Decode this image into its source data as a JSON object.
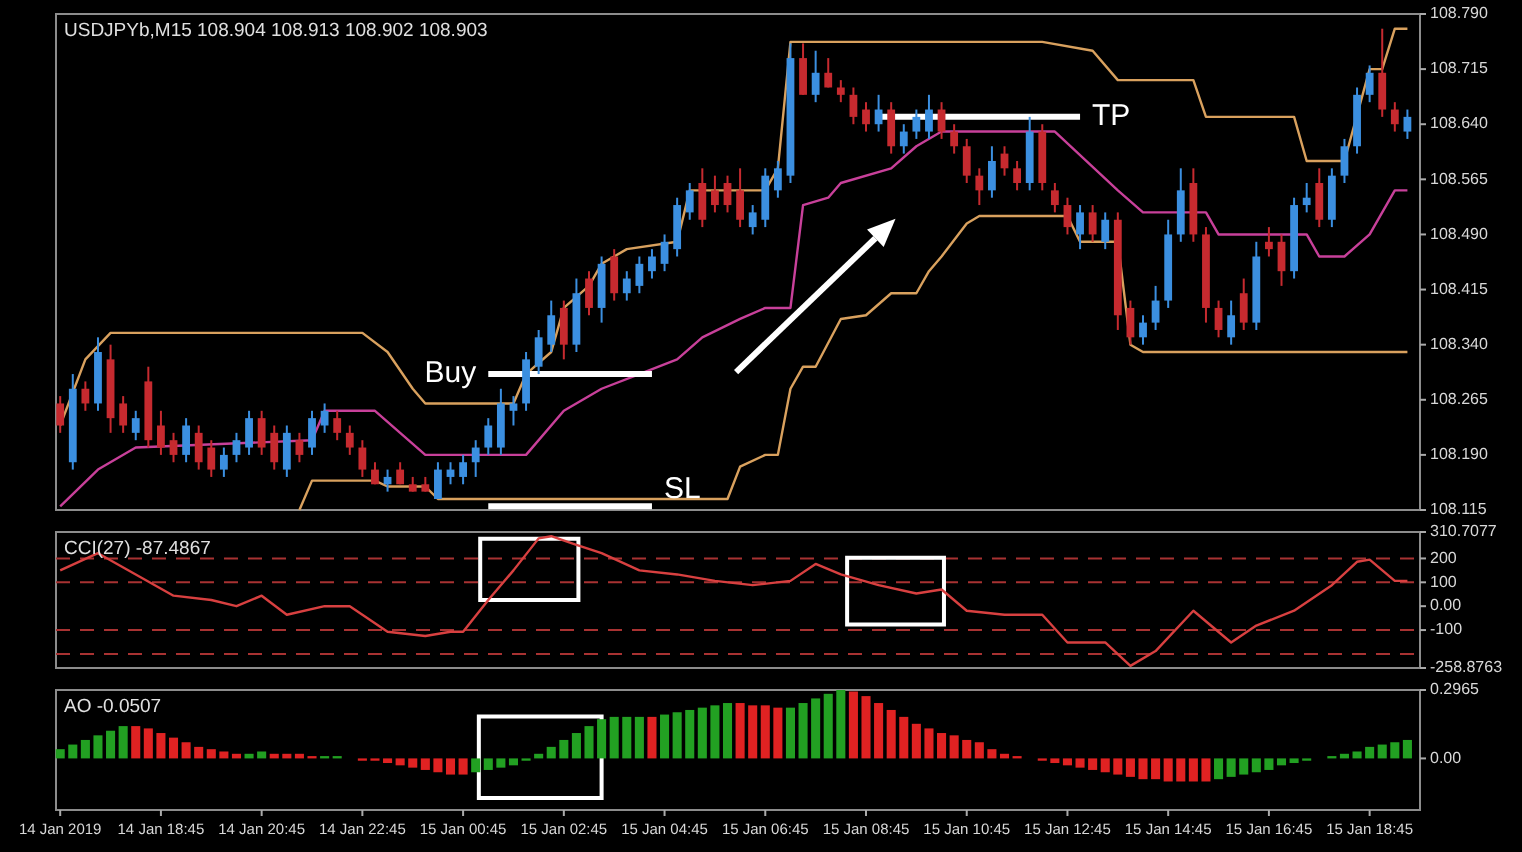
{
  "chart_data": [
    {
      "type": "candlestick",
      "title": "USDJPYb,M15  108.904 108.913 108.902 108.903",
      "x": [
        "2019-01-14T16:45",
        "2019-01-14T17:00",
        "2019-01-14T17:15",
        "2019-01-14T17:30",
        "2019-01-14T17:45",
        "2019-01-14T18:00",
        "2019-01-14T18:15",
        "2019-01-14T18:30",
        "2019-01-14T18:45",
        "2019-01-14T19:00",
        "2019-01-14T19:15",
        "2019-01-14T19:30",
        "2019-01-14T19:45",
        "2019-01-14T20:00",
        "2019-01-14T20:15",
        "2019-01-14T20:30",
        "2019-01-14T20:45",
        "2019-01-14T21:00",
        "2019-01-14T21:15",
        "2019-01-14T21:30",
        "2019-01-14T21:45",
        "2019-01-14T22:00",
        "2019-01-14T22:15",
        "2019-01-14T22:30",
        "2019-01-14T22:45",
        "2019-01-14T23:00",
        "2019-01-14T23:15",
        "2019-01-14T23:30",
        "2019-01-14T23:45",
        "2019-01-15T00:00",
        "2019-01-15T00:15",
        "2019-01-15T00:30",
        "2019-01-15T00:45",
        "2019-01-15T01:00",
        "2019-01-15T01:15",
        "2019-01-15T01:30",
        "2019-01-15T01:45",
        "2019-01-15T02:00",
        "2019-01-15T02:15",
        "2019-01-15T02:30",
        "2019-01-15T02:45",
        "2019-01-15T03:00",
        "2019-01-15T03:15",
        "2019-01-15T03:30",
        "2019-01-15T03:45",
        "2019-01-15T04:00",
        "2019-01-15T04:15",
        "2019-01-15T04:30",
        "2019-01-15T04:45",
        "2019-01-15T05:00",
        "2019-01-15T05:15",
        "2019-01-15T05:30",
        "2019-01-15T05:45",
        "2019-01-15T06:00",
        "2019-01-15T06:15",
        "2019-01-15T06:30",
        "2019-01-15T06:45",
        "2019-01-15T07:00",
        "2019-01-15T07:15",
        "2019-01-15T07:30",
        "2019-01-15T07:45",
        "2019-01-15T08:00",
        "2019-01-15T08:15",
        "2019-01-15T08:30",
        "2019-01-15T08:45",
        "2019-01-15T09:00",
        "2019-01-15T09:15",
        "2019-01-15T09:30",
        "2019-01-15T09:45",
        "2019-01-15T10:00",
        "2019-01-15T10:15",
        "2019-01-15T10:30",
        "2019-01-15T10:45",
        "2019-01-15T11:00",
        "2019-01-15T11:15",
        "2019-01-15T11:30",
        "2019-01-15T11:45",
        "2019-01-15T12:00",
        "2019-01-15T12:15",
        "2019-01-15T12:30",
        "2019-01-15T12:45",
        "2019-01-15T13:00",
        "2019-01-15T13:15",
        "2019-01-15T13:30",
        "2019-01-15T13:45",
        "2019-01-15T14:00",
        "2019-01-15T14:15",
        "2019-01-15T14:30",
        "2019-01-15T14:45",
        "2019-01-15T15:00",
        "2019-01-15T15:15",
        "2019-01-15T15:30",
        "2019-01-15T15:45",
        "2019-01-15T16:00",
        "2019-01-15T16:15",
        "2019-01-15T16:30",
        "2019-01-15T16:45",
        "2019-01-15T17:00",
        "2019-01-15T17:15",
        "2019-01-15T17:30",
        "2019-01-15T17:45",
        "2019-01-15T18:00",
        "2019-01-15T18:15",
        "2019-01-15T18:30",
        "2019-01-15T18:45",
        "2019-01-15T19:00",
        "2019-01-15T19:15",
        "2019-01-15T19:30"
      ],
      "ohlc": [
        [
          108.26,
          108.27,
          108.22,
          108.23
        ],
        [
          108.18,
          108.3,
          108.17,
          108.28
        ],
        [
          108.28,
          108.29,
          108.25,
          108.26
        ],
        [
          108.26,
          108.35,
          108.25,
          108.33
        ],
        [
          108.32,
          108.34,
          108.22,
          108.24
        ],
        [
          108.26,
          108.27,
          108.22,
          108.23
        ],
        [
          108.22,
          108.25,
          108.21,
          108.24
        ],
        [
          108.29,
          108.31,
          108.2,
          108.21
        ],
        [
          108.23,
          108.25,
          108.19,
          108.2
        ],
        [
          108.21,
          108.22,
          108.18,
          108.19
        ],
        [
          108.19,
          108.24,
          108.18,
          108.23
        ],
        [
          108.22,
          108.23,
          108.17,
          108.18
        ],
        [
          108.2,
          108.21,
          108.16,
          108.17
        ],
        [
          108.17,
          108.2,
          108.16,
          108.19
        ],
        [
          108.19,
          108.22,
          108.18,
          108.21
        ],
        [
          108.2,
          108.25,
          108.19,
          108.24
        ],
        [
          108.24,
          108.25,
          108.19,
          108.2
        ],
        [
          108.22,
          108.23,
          108.17,
          108.18
        ],
        [
          108.17,
          108.23,
          108.16,
          108.22
        ],
        [
          108.21,
          108.22,
          108.18,
          108.19
        ],
        [
          108.2,
          108.25,
          108.19,
          108.24
        ],
        [
          108.23,
          108.26,
          108.22,
          108.25
        ],
        [
          108.24,
          108.25,
          108.21,
          108.22
        ],
        [
          108.22,
          108.23,
          108.19,
          108.2
        ],
        [
          108.2,
          108.21,
          108.16,
          108.17
        ],
        [
          108.17,
          108.18,
          108.15,
          108.15
        ],
        [
          108.15,
          108.17,
          108.14,
          108.16
        ],
        [
          108.17,
          108.18,
          108.15,
          108.15
        ],
        [
          108.15,
          108.16,
          108.14,
          108.14
        ],
        [
          108.15,
          108.16,
          108.14,
          108.14
        ],
        [
          108.13,
          108.18,
          108.13,
          108.17
        ],
        [
          108.16,
          108.18,
          108.15,
          108.17
        ],
        [
          108.16,
          108.19,
          108.15,
          108.18
        ],
        [
          108.18,
          108.21,
          108.16,
          108.2
        ],
        [
          108.2,
          108.24,
          108.19,
          108.23
        ],
        [
          108.2,
          108.28,
          108.19,
          108.26
        ],
        [
          108.25,
          108.27,
          108.23,
          108.26
        ],
        [
          108.26,
          108.33,
          108.25,
          108.32
        ],
        [
          108.31,
          108.36,
          108.3,
          108.35
        ],
        [
          108.34,
          108.4,
          108.33,
          108.38
        ],
        [
          108.39,
          108.4,
          108.32,
          108.34
        ],
        [
          108.34,
          108.43,
          108.33,
          108.41
        ],
        [
          108.43,
          108.44,
          108.38,
          108.39
        ],
        [
          108.39,
          108.46,
          108.37,
          108.45
        ],
        [
          108.46,
          108.47,
          108.4,
          108.41
        ],
        [
          108.41,
          108.44,
          108.4,
          108.43
        ],
        [
          108.42,
          108.46,
          108.41,
          108.45
        ],
        [
          108.44,
          108.47,
          108.43,
          108.46
        ],
        [
          108.45,
          108.49,
          108.44,
          108.48
        ],
        [
          108.47,
          108.54,
          108.46,
          108.53
        ],
        [
          108.52,
          108.56,
          108.51,
          108.55
        ],
        [
          108.56,
          108.58,
          108.5,
          108.51
        ],
        [
          108.55,
          108.57,
          108.52,
          108.53
        ],
        [
          108.56,
          108.57,
          108.52,
          108.53
        ],
        [
          108.55,
          108.58,
          108.5,
          108.51
        ],
        [
          108.5,
          108.53,
          108.49,
          108.52
        ],
        [
          108.51,
          108.58,
          108.5,
          108.57
        ],
        [
          108.55,
          108.59,
          108.54,
          108.58
        ],
        [
          108.57,
          108.75,
          108.56,
          108.73
        ],
        [
          108.73,
          108.75,
          108.68,
          108.68
        ],
        [
          108.68,
          108.74,
          108.67,
          108.71
        ],
        [
          108.71,
          108.73,
          108.69,
          108.69
        ],
        [
          108.69,
          108.7,
          108.67,
          108.68
        ],
        [
          108.68,
          108.69,
          108.64,
          108.65
        ],
        [
          108.66,
          108.67,
          108.63,
          108.64
        ],
        [
          108.64,
          108.68,
          108.63,
          108.66
        ],
        [
          108.66,
          108.67,
          108.6,
          108.61
        ],
        [
          108.61,
          108.64,
          108.6,
          108.63
        ],
        [
          108.63,
          108.66,
          108.62,
          108.65
        ],
        [
          108.63,
          108.68,
          108.62,
          108.66
        ],
        [
          108.66,
          108.67,
          108.62,
          108.63
        ],
        [
          108.63,
          108.64,
          108.6,
          108.61
        ],
        [
          108.61,
          108.62,
          108.56,
          108.57
        ],
        [
          108.57,
          108.58,
          108.53,
          108.55
        ],
        [
          108.55,
          108.61,
          108.54,
          108.59
        ],
        [
          108.6,
          108.61,
          108.57,
          108.58
        ],
        [
          108.58,
          108.59,
          108.55,
          108.56
        ],
        [
          108.56,
          108.65,
          108.55,
          108.63
        ],
        [
          108.63,
          108.64,
          108.55,
          108.56
        ],
        [
          108.55,
          108.56,
          108.52,
          108.53
        ],
        [
          108.53,
          108.54,
          108.49,
          108.5
        ],
        [
          108.49,
          108.53,
          108.47,
          108.52
        ],
        [
          108.52,
          108.53,
          108.48,
          108.49
        ],
        [
          108.48,
          108.52,
          108.47,
          108.51
        ],
        [
          108.51,
          108.52,
          108.36,
          108.38
        ],
        [
          108.39,
          108.4,
          108.34,
          108.35
        ],
        [
          108.35,
          108.38,
          108.34,
          108.37
        ],
        [
          108.37,
          108.42,
          108.36,
          108.4
        ],
        [
          108.4,
          108.51,
          108.39,
          108.49
        ],
        [
          108.49,
          108.58,
          108.48,
          108.55
        ],
        [
          108.56,
          108.58,
          108.48,
          108.49
        ],
        [
          108.49,
          108.5,
          108.37,
          108.39
        ],
        [
          108.39,
          108.4,
          108.35,
          108.36
        ],
        [
          108.35,
          108.4,
          108.34,
          108.38
        ],
        [
          108.41,
          108.43,
          108.36,
          108.37
        ],
        [
          108.37,
          108.48,
          108.36,
          108.46
        ],
        [
          108.48,
          108.5,
          108.46,
          108.47
        ],
        [
          108.48,
          108.49,
          108.42,
          108.44
        ],
        [
          108.44,
          108.54,
          108.43,
          108.53
        ],
        [
          108.53,
          108.56,
          108.52,
          108.54
        ],
        [
          108.56,
          108.58,
          108.5,
          108.51
        ],
        [
          108.51,
          108.58,
          108.5,
          108.57
        ],
        [
          108.57,
          108.62,
          108.56,
          108.61
        ],
        [
          108.61,
          108.69,
          108.6,
          108.68
        ],
        [
          108.68,
          108.72,
          108.67,
          108.71
        ],
        [
          108.71,
          108.77,
          108.65,
          108.66
        ],
        [
          108.66,
          108.67,
          108.63,
          108.64
        ],
        [
          108.63,
          108.66,
          108.62,
          108.65
        ]
      ],
      "colors": [
        "#c62a2f",
        "#3b8fe0",
        "#c62a2f",
        "#3b8fe0",
        "#c62a2f",
        "#c62a2f",
        "#3b8fe0",
        "#c62a2f",
        "#c62a2f",
        "#c62a2f",
        "#3b8fe0",
        "#c62a2f",
        "#c62a2f",
        "#3b8fe0",
        "#3b8fe0",
        "#3b8fe0",
        "#c62a2f",
        "#c62a2f",
        "#3b8fe0",
        "#c62a2f",
        "#3b8fe0",
        "#3b8fe0",
        "#c62a2f",
        "#c62a2f",
        "#c62a2f",
        "#c62a2f",
        "#3b8fe0",
        "#c62a2f",
        "#c62a2f",
        "#c62a2f",
        "#3b8fe0",
        "#3b8fe0",
        "#3b8fe0",
        "#3b8fe0",
        "#3b8fe0",
        "#3b8fe0",
        "#3b8fe0",
        "#3b8fe0",
        "#3b8fe0",
        "#3b8fe0",
        "#c62a2f",
        "#3b8fe0",
        "#c62a2f",
        "#3b8fe0",
        "#c62a2f",
        "#3b8fe0",
        "#3b8fe0",
        "#3b8fe0",
        "#3b8fe0",
        "#3b8fe0",
        "#3b8fe0",
        "#c62a2f",
        "#c62a2f",
        "#c62a2f",
        "#c62a2f",
        "#3b8fe0",
        "#3b8fe0",
        "#3b8fe0",
        "#3b8fe0",
        "#c62a2f",
        "#3b8fe0",
        "#c62a2f",
        "#c62a2f",
        "#c62a2f",
        "#c62a2f",
        "#3b8fe0",
        "#c62a2f",
        "#3b8fe0",
        "#3b8fe0",
        "#3b8fe0",
        "#c62a2f",
        "#c62a2f",
        "#c62a2f",
        "#c62a2f",
        "#3b8fe0",
        "#c62a2f",
        "#c62a2f",
        "#3b8fe0",
        "#c62a2f",
        "#c62a2f",
        "#c62a2f",
        "#3b8fe0",
        "#c62a2f",
        "#3b8fe0",
        "#c62a2f",
        "#c62a2f",
        "#3b8fe0",
        "#3b8fe0",
        "#3b8fe0",
        "#3b8fe0",
        "#c62a2f",
        "#c62a2f",
        "#c62a2f",
        "#3b8fe0",
        "#c62a2f",
        "#3b8fe0",
        "#c62a2f",
        "#c62a2f",
        "#3b8fe0",
        "#3b8fe0",
        "#c62a2f",
        "#3b8fe0",
        "#3b8fe0",
        "#3b8fe0",
        "#3b8fe0",
        "#c62a2f",
        "#c62a2f",
        "#3b8fe0"
      ],
      "series": [
        {
          "type": "line",
          "color": "#d9a15e",
          "x": [
            "2019-01-14T16:45",
            "2019-01-14T17:15",
            "2019-01-14T17:45",
            "2019-01-14T22:45",
            "2019-01-14T23:15",
            "2019-01-14T23:45",
            "2019-01-15T00:00",
            "2019-01-15T01:45",
            "2019-01-15T02:00",
            "2019-01-15T02:30",
            "2019-01-15T02:45",
            "2019-01-15T03:15",
            "2019-01-15T03:30",
            "2019-01-15T04:00",
            "2019-01-15T05:00",
            "2019-01-15T05:15",
            "2019-01-15T06:45",
            "2019-01-15T07:00",
            "2019-01-15T07:15",
            "2019-01-15T12:15",
            "2019-01-15T13:15",
            "2019-01-15T13:45",
            "2019-01-15T15:15",
            "2019-01-15T15:30",
            "2019-01-15T17:15",
            "2019-01-15T17:30",
            "2019-01-15T18:15",
            "2019-01-15T18:45",
            "2019-01-15T19:00",
            "2019-01-15T19:15",
            "2019-01-15T19:30"
          ],
          "values": [
            108.23,
            108.32,
            108.356,
            108.356,
            108.33,
            108.28,
            108.26,
            108.26,
            108.3,
            108.33,
            108.39,
            108.42,
            108.45,
            108.47,
            108.48,
            108.55,
            108.55,
            108.58,
            108.752,
            108.752,
            108.74,
            108.7,
            108.7,
            108.65,
            108.65,
            108.59,
            108.59,
            108.715,
            108.715,
            108.77,
            108.77
          ]
        },
        {
          "type": "line",
          "color": "#c8409a",
          "x": [
            "2019-01-14T16:45",
            "2019-01-14T17:30",
            "2019-01-14T18:15",
            "2019-01-14T21:45",
            "2019-01-14T22:00",
            "2019-01-14T23:00",
            "2019-01-14T23:30",
            "2019-01-15T00:00",
            "2019-01-15T02:00",
            "2019-01-15T02:45",
            "2019-01-15T03:30",
            "2019-01-15T04:15",
            "2019-01-15T05:00",
            "2019-01-15T05:30",
            "2019-01-15T06:15",
            "2019-01-15T06:45",
            "2019-01-15T07:15",
            "2019-01-15T07:30",
            "2019-01-15T08:00",
            "2019-01-15T08:15",
            "2019-01-15T09:15",
            "2019-01-15T09:45",
            "2019-01-15T10:15",
            "2019-01-15T12:30",
            "2019-01-15T13:45",
            "2019-01-15T14:15",
            "2019-01-15T15:30",
            "2019-01-15T15:45",
            "2019-01-15T17:30",
            "2019-01-15T17:45",
            "2019-01-15T18:15",
            "2019-01-15T18:45",
            "2019-01-15T19:00",
            "2019-01-15T19:15",
            "2019-01-15T19:30"
          ],
          "values": [
            108.12,
            108.17,
            108.2,
            108.21,
            108.25,
            108.25,
            108.22,
            108.19,
            108.19,
            108.25,
            108.28,
            108.3,
            108.32,
            108.35,
            108.375,
            108.39,
            108.39,
            108.53,
            108.54,
            108.56,
            108.58,
            108.61,
            108.63,
            108.63,
            108.55,
            108.52,
            108.52,
            108.49,
            108.49,
            108.46,
            108.46,
            108.49,
            108.52,
            108.55,
            108.55
          ]
        },
        {
          "type": "line",
          "color": "#d9a15e",
          "x": [
            "2019-01-14T21:30",
            "2019-01-14T21:45",
            "2019-01-14T23:00",
            "2019-01-14T23:15",
            "2019-01-15T00:00",
            "2019-01-15T00:15",
            "2019-01-15T06:00",
            "2019-01-15T06:15",
            "2019-01-15T06:45",
            "2019-01-15T07:00",
            "2019-01-15T07:15",
            "2019-01-15T07:30",
            "2019-01-15T07:45",
            "2019-01-15T08:15",
            "2019-01-15T08:45",
            "2019-01-15T09:15",
            "2019-01-15T09:45",
            "2019-01-15T10:00",
            "2019-01-15T10:15",
            "2019-01-15T10:45",
            "2019-01-15T11:00",
            "2019-01-15T12:45",
            "2019-01-15T13:00",
            "2019-01-15T13:45",
            "2019-01-15T14:00",
            "2019-01-15T14:15",
            "2019-01-15T19:30"
          ],
          "values": [
            108.115,
            108.155,
            108.155,
            108.147,
            108.147,
            108.13,
            108.13,
            108.174,
            108.19,
            108.19,
            108.28,
            108.31,
            108.31,
            108.375,
            108.38,
            108.41,
            108.41,
            108.44,
            108.46,
            108.505,
            108.515,
            108.515,
            108.48,
            108.48,
            108.34,
            108.33,
            108.33
          ]
        },
        {
          "type": "line",
          "name": "Buy",
          "color": "#ffffff",
          "x": [
            "2019-01-15T01:15",
            "2019-01-15T04:30"
          ],
          "values": [
            108.3,
            108.3
          ]
        },
        {
          "type": "line",
          "name": "TP",
          "color": "#ffffff",
          "x": [
            "2019-01-15T09:00",
            "2019-01-15T13:00"
          ],
          "values": [
            108.65,
            108.65
          ]
        },
        {
          "type": "line",
          "name": "SL",
          "color": "#ffffff",
          "x": [
            "2019-01-15T01:15",
            "2019-01-15T04:30"
          ],
          "values": [
            108.12,
            108.12
          ]
        }
      ],
      "xlim": [
        "2019-01-14T16:40",
        "2019-01-15T19:45"
      ],
      "ylim": [
        108.115,
        108.79
      ],
      "yticks": [
        {
          "value": 108.79,
          "label": "108.790"
        },
        108.715,
        {
          "value": 108.64,
          "label": "108.640"
        },
        108.565,
        {
          "value": 108.49,
          "label": "108.490"
        },
        108.415,
        {
          "value": 108.34,
          "label": "108.340"
        },
        108.265,
        {
          "value": 108.19,
          "label": "108.190"
        },
        108.115
      ],
      "tick_labels": "y"
    },
    {
      "type": "line",
      "title": "CCI(27) -87.4867",
      "series": [
        {
          "color": "#d84040",
          "x": [
            "2019-01-14T16:45",
            "2019-01-14T17:30",
            "2019-01-14T18:15",
            "2019-01-14T19:00",
            "2019-01-14T19:45",
            "2019-01-14T20:15",
            "2019-01-14T20:45",
            "2019-01-14T21:15",
            "2019-01-14T22:00",
            "2019-01-14T22:30",
            "2019-01-14T23:15",
            "2019-01-15T00:00",
            "2019-01-15T00:30",
            "2019-01-15T00:45",
            "2019-01-15T01:15",
            "2019-01-15T01:45",
            "2019-01-15T02:15",
            "2019-01-15T02:30",
            "2019-01-15T03:00",
            "2019-01-15T03:30",
            "2019-01-15T04:15",
            "2019-01-15T05:00",
            "2019-01-15T05:45",
            "2019-01-15T06:30",
            "2019-01-15T07:15",
            "2019-01-15T07:45",
            "2019-01-15T08:15",
            "2019-01-15T09:00",
            "2019-01-15T09:45",
            "2019-01-15T10:15",
            "2019-01-15T10:45",
            "2019-01-15T11:30",
            "2019-01-15T12:15",
            "2019-01-15T12:45",
            "2019-01-15T13:30",
            "2019-01-15T14:00",
            "2019-01-15T14:30",
            "2019-01-15T15:15",
            "2019-01-15T16:00",
            "2019-01-15T16:30",
            "2019-01-15T17:15",
            "2019-01-15T18:00",
            "2019-01-15T18:30",
            "2019-01-15T18:45",
            "2019-01-15T19:15",
            "2019-01-15T19:30"
          ],
          "values": [
            150,
            222,
            133,
            44,
            26,
            0,
            44,
            -36,
            0,
            0,
            -107,
            -125,
            -107,
            -107,
            26,
            150,
            284,
            293,
            257,
            222,
            150,
            133,
            106,
            88,
            106,
            177,
            133,
            88,
            53,
            70,
            -19,
            -36,
            -36,
            -152,
            -152,
            -250,
            -188,
            -19,
            -152,
            -81,
            -19,
            88,
            186,
            195,
            106,
            106
          ]
        }
      ],
      "xlim": [
        "2019-01-14T16:40",
        "2019-01-15T19:45"
      ],
      "ylim": [
        -258.8763,
        310.7077
      ],
      "yticks": [
        310.7077,
        200,
        100,
        {
          "value": 0,
          "label": "0.00"
        },
        -100,
        -258.8763
      ],
      "tick_labels": "y",
      "ref_lines": [
        {
          "axis": "y",
          "value": 200,
          "color": "#a83232",
          "line_style": "dashed"
        },
        {
          "axis": "y",
          "value": 100,
          "color": "#a83232",
          "line_style": "dashed"
        },
        {
          "axis": "y",
          "value": -100,
          "color": "#a83232",
          "line_style": "dashed"
        },
        {
          "axis": "y",
          "value": -200,
          "color": "#a83232",
          "line_style": "dashed"
        }
      ]
    },
    {
      "type": "bar",
      "title": "AO -0.0507",
      "x": [
        "2019-01-14T16:45",
        "2019-01-14T17:00",
        "2019-01-14T17:15",
        "2019-01-14T17:30",
        "2019-01-14T17:45",
        "2019-01-14T18:00",
        "2019-01-14T18:15",
        "2019-01-14T18:30",
        "2019-01-14T18:45",
        "2019-01-14T19:00",
        "2019-01-14T19:15",
        "2019-01-14T19:30",
        "2019-01-14T19:45",
        "2019-01-14T20:00",
        "2019-01-14T20:15",
        "2019-01-14T20:30",
        "2019-01-14T20:45",
        "2019-01-14T21:00",
        "2019-01-14T21:15",
        "2019-01-14T21:30",
        "2019-01-14T21:45",
        "2019-01-14T22:00",
        "2019-01-14T22:15",
        "2019-01-14T22:30",
        "2019-01-14T22:45",
        "2019-01-14T23:00",
        "2019-01-14T23:15",
        "2019-01-14T23:30",
        "2019-01-14T23:45",
        "2019-01-15T00:00",
        "2019-01-15T00:15",
        "2019-01-15T00:30",
        "2019-01-15T00:45",
        "2019-01-15T01:00",
        "2019-01-15T01:15",
        "2019-01-15T01:30",
        "2019-01-15T01:45",
        "2019-01-15T02:00",
        "2019-01-15T02:15",
        "2019-01-15T02:30",
        "2019-01-15T02:45",
        "2019-01-15T03:00",
        "2019-01-15T03:15",
        "2019-01-15T03:30",
        "2019-01-15T03:45",
        "2019-01-15T04:00",
        "2019-01-15T04:15",
        "2019-01-15T04:30",
        "2019-01-15T04:45",
        "2019-01-15T05:00",
        "2019-01-15T05:15",
        "2019-01-15T05:30",
        "2019-01-15T05:45",
        "2019-01-15T06:00",
        "2019-01-15T06:15",
        "2019-01-15T06:30",
        "2019-01-15T06:45",
        "2019-01-15T07:00",
        "2019-01-15T07:15",
        "2019-01-15T07:30",
        "2019-01-15T07:45",
        "2019-01-15T08:00",
        "2019-01-15T08:15",
        "2019-01-15T08:30",
        "2019-01-15T08:45",
        "2019-01-15T09:00",
        "2019-01-15T09:15",
        "2019-01-15T09:30",
        "2019-01-15T09:45",
        "2019-01-15T10:00",
        "2019-01-15T10:15",
        "2019-01-15T10:30",
        "2019-01-15T10:45",
        "2019-01-15T11:00",
        "2019-01-15T11:15",
        "2019-01-15T11:30",
        "2019-01-15T11:45",
        "2019-01-15T12:00",
        "2019-01-15T12:15",
        "2019-01-15T12:30",
        "2019-01-15T12:45",
        "2019-01-15T13:00",
        "2019-01-15T13:15",
        "2019-01-15T13:30",
        "2019-01-15T13:45",
        "2019-01-15T14:00",
        "2019-01-15T14:15",
        "2019-01-15T14:30",
        "2019-01-15T14:45",
        "2019-01-15T15:00",
        "2019-01-15T15:15",
        "2019-01-15T15:30",
        "2019-01-15T15:45",
        "2019-01-15T16:00",
        "2019-01-15T16:15",
        "2019-01-15T16:30",
        "2019-01-15T16:45",
        "2019-01-15T17:00",
        "2019-01-15T17:15",
        "2019-01-15T17:30",
        "2019-01-15T17:45",
        "2019-01-15T18:00",
        "2019-01-15T18:15",
        "2019-01-15T18:30",
        "2019-01-15T18:45",
        "2019-01-15T19:00",
        "2019-01-15T19:15",
        "2019-01-15T19:30"
      ],
      "values": [
        0.04,
        0.06,
        0.08,
        0.1,
        0.12,
        0.14,
        0.14,
        0.13,
        0.11,
        0.09,
        0.07,
        0.05,
        0.04,
        0.03,
        0.02,
        0.02,
        0.03,
        0.02,
        0.02,
        0.02,
        0.01,
        0.01,
        0.01,
        0.0,
        -0.01,
        -0.01,
        -0.02,
        -0.03,
        -0.04,
        -0.05,
        -0.06,
        -0.07,
        -0.07,
        -0.06,
        -0.05,
        -0.04,
        -0.03,
        -0.01,
        0.02,
        0.05,
        0.08,
        0.11,
        0.14,
        0.17,
        0.18,
        0.18,
        0.18,
        0.18,
        0.19,
        0.2,
        0.21,
        0.22,
        0.23,
        0.24,
        0.24,
        0.23,
        0.23,
        0.22,
        0.22,
        0.24,
        0.26,
        0.28,
        0.2965,
        0.29,
        0.27,
        0.24,
        0.21,
        0.18,
        0.15,
        0.13,
        0.11,
        0.1,
        0.08,
        0.07,
        0.04,
        0.02,
        0.01,
        0.0,
        -0.01,
        -0.02,
        -0.03,
        -0.04,
        -0.05,
        -0.06,
        -0.07,
        -0.08,
        -0.09,
        -0.09,
        -0.1,
        -0.1,
        -0.1,
        -0.1,
        -0.09,
        -0.08,
        -0.07,
        -0.06,
        -0.05,
        -0.03,
        -0.02,
        -0.01,
        0.0,
        0.01,
        0.02,
        0.03,
        0.05,
        0.06,
        0.07,
        0.08
      ],
      "colors": [
        "#22a022",
        "#22a022",
        "#22a022",
        "#22a022",
        "#22a022",
        "#22a022",
        "#e02222",
        "#e02222",
        "#e02222",
        "#e02222",
        "#e02222",
        "#e02222",
        "#e02222",
        "#e02222",
        "#e02222",
        "#22a022",
        "#22a022",
        "#e02222",
        "#e02222",
        "#e02222",
        "#e02222",
        "#22a022",
        "#22a022",
        "#e02222",
        "#e02222",
        "#e02222",
        "#e02222",
        "#e02222",
        "#e02222",
        "#e02222",
        "#e02222",
        "#e02222",
        "#e02222",
        "#22a022",
        "#22a022",
        "#22a022",
        "#22a022",
        "#22a022",
        "#22a022",
        "#22a022",
        "#22a022",
        "#22a022",
        "#22a022",
        "#22a022",
        "#22a022",
        "#22a022",
        "#22a022",
        "#e02222",
        "#22a022",
        "#22a022",
        "#22a022",
        "#22a022",
        "#22a022",
        "#22a022",
        "#e02222",
        "#e02222",
        "#e02222",
        "#e02222",
        "#22a022",
        "#22a022",
        "#22a022",
        "#22a022",
        "#22a022",
        "#e02222",
        "#e02222",
        "#e02222",
        "#e02222",
        "#e02222",
        "#e02222",
        "#e02222",
        "#e02222",
        "#e02222",
        "#e02222",
        "#e02222",
        "#e02222",
        "#e02222",
        "#e02222",
        "#e02222",
        "#e02222",
        "#e02222",
        "#e02222",
        "#e02222",
        "#e02222",
        "#e02222",
        "#e02222",
        "#e02222",
        "#e02222",
        "#e02222",
        "#e02222",
        "#e02222",
        "#e02222",
        "#e02222",
        "#22a022",
        "#22a022",
        "#22a022",
        "#22a022",
        "#22a022",
        "#22a022",
        "#22a022",
        "#22a022",
        "#22a022",
        "#22a022",
        "#22a022",
        "#22a022",
        "#22a022",
        "#22a022",
        "#22a022",
        "#22a022"
      ],
      "xlim": [
        "2019-01-14T16:40",
        "2019-01-15T19:45"
      ],
      "ylim": [
        -0.2236,
        0.2965
      ],
      "yticks": [
        0.2965,
        {
          "value": 0,
          "label": "0.00"
        }
      ],
      "xticks": [
        {
          "value": "2019-01-14T16:45",
          "label": "14 Jan 2019"
        },
        {
          "value": "2019-01-14T18:45",
          "label": "14 Jan 18:45"
        },
        {
          "value": "2019-01-14T20:45",
          "label": "14 Jan 20:45"
        },
        {
          "value": "2019-01-14T22:45",
          "label": "14 Jan 22:45"
        },
        {
          "value": "2019-01-15T00:45",
          "label": "15 Jan 00:45"
        },
        {
          "value": "2019-01-15T02:45",
          "label": "15 Jan 02:45"
        },
        {
          "value": "2019-01-15T04:45",
          "label": "15 Jan 04:45"
        },
        {
          "value": "2019-01-15T06:45",
          "label": "15 Jan 06:45"
        },
        {
          "value": "2019-01-15T08:45",
          "label": "15 Jan 08:45"
        },
        {
          "value": "2019-01-15T10:45",
          "label": "15 Jan 10:45"
        },
        {
          "value": "2019-01-15T12:45",
          "label": "15 Jan 12:45"
        },
        {
          "value": "2019-01-15T14:45",
          "label": "15 Jan 14:45"
        },
        {
          "value": "2019-01-15T16:45",
          "label": "15 Jan 16:45"
        },
        {
          "value": "2019-01-15T18:45",
          "label": "15 Jan 18:45"
        }
      ]
    }
  ]
}
